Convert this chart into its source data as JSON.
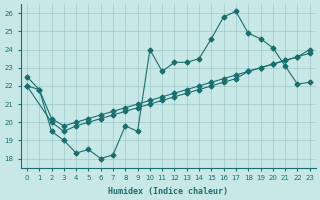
{
  "xlabel": "Humidex (Indice chaleur)",
  "ylabel": "",
  "xlim": [
    -0.5,
    23.5
  ],
  "ylim": [
    17.5,
    26.5
  ],
  "xticks": [
    0,
    1,
    2,
    3,
    4,
    5,
    6,
    7,
    8,
    9,
    10,
    11,
    12,
    13,
    14,
    15,
    16,
    17,
    18,
    19,
    20,
    21,
    22,
    23
  ],
  "yticks": [
    18,
    19,
    20,
    21,
    22,
    23,
    24,
    25,
    26
  ],
  "background_color": "#c8e8e8",
  "grid_color": "#a0c8c8",
  "line_color": "#1a6e6e",
  "line1_x": [
    0,
    1,
    2,
    3,
    4,
    5,
    6,
    7,
    8,
    9,
    10,
    11,
    12,
    13,
    14,
    15,
    16,
    17,
    18,
    19,
    20,
    21,
    22,
    23
  ],
  "line1_y": [
    22.5,
    21.8,
    19.5,
    19.0,
    18.3,
    18.5,
    18.0,
    18.2,
    19.8,
    19.5,
    24.0,
    22.8,
    23.3,
    23.3,
    23.5,
    24.6,
    25.8,
    26.1,
    24.9,
    24.6,
    24.1,
    23.1,
    22.1,
    22.2
  ],
  "line2_x": [
    0,
    1,
    2,
    3,
    4,
    5,
    6,
    7,
    8,
    9,
    10,
    11,
    12,
    13,
    14,
    15,
    16,
    17,
    18,
    19,
    20,
    21,
    22,
    23
  ],
  "line2_y": [
    22.0,
    21.8,
    20.2,
    19.8,
    20.0,
    20.2,
    20.4,
    20.6,
    20.8,
    21.0,
    21.2,
    21.4,
    21.6,
    21.8,
    22.0,
    22.2,
    22.4,
    22.6,
    22.8,
    23.0,
    23.2,
    23.4,
    23.6,
    23.8
  ],
  "line3_x": [
    0,
    2,
    3,
    4,
    5,
    6,
    7,
    8,
    9,
    10,
    11,
    12,
    13,
    14,
    15,
    16,
    17,
    18,
    19,
    20,
    21,
    22,
    23
  ],
  "line3_y": [
    22.0,
    20.0,
    19.5,
    19.8,
    20.0,
    20.2,
    20.4,
    20.6,
    20.8,
    21.0,
    21.2,
    21.4,
    21.6,
    21.8,
    22.0,
    22.2,
    22.4,
    22.8,
    23.0,
    23.2,
    23.4,
    23.6,
    24.0
  ]
}
